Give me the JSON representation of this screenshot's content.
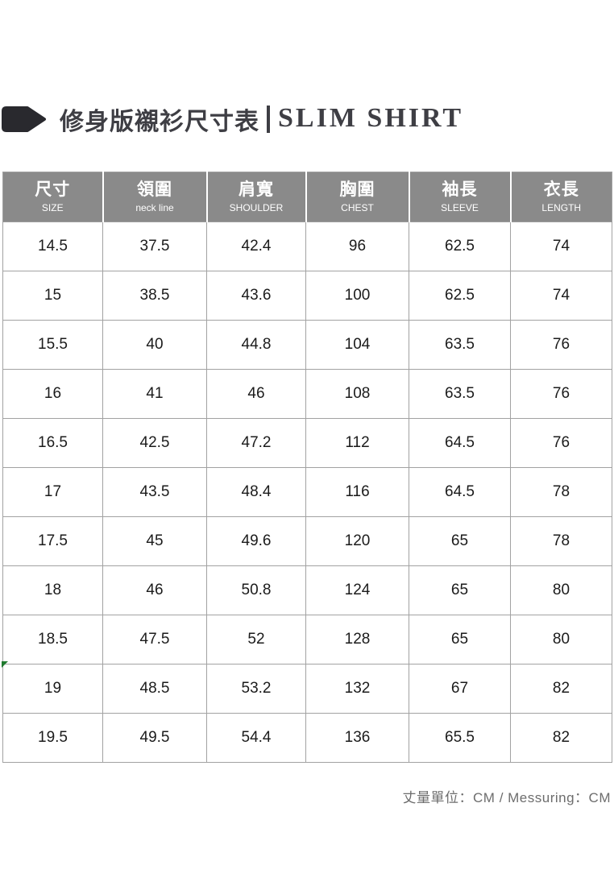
{
  "title": {
    "zh": "修身版襯衫尺寸表",
    "en": "SLIM SHIRT"
  },
  "size_table": {
    "columns": [
      {
        "zh": "尺寸",
        "en": "SIZE"
      },
      {
        "zh": "領圍",
        "en": "neck line"
      },
      {
        "zh": "肩寬",
        "en": "SHOULDER"
      },
      {
        "zh": "胸圍",
        "en": "CHEST"
      },
      {
        "zh": "袖長",
        "en": "SLEEVE"
      },
      {
        "zh": "衣長",
        "en": "LENGTH"
      }
    ],
    "rows": [
      [
        "14.5",
        "37.5",
        "42.4",
        "96",
        "62.5",
        "74"
      ],
      [
        "15",
        "38.5",
        "43.6",
        "100",
        "62.5",
        "74"
      ],
      [
        "15.5",
        "40",
        "44.8",
        "104",
        "63.5",
        "76"
      ],
      [
        "16",
        "41",
        "46",
        "108",
        "63.5",
        "76"
      ],
      [
        "16.5",
        "42.5",
        "47.2",
        "112",
        "64.5",
        "76"
      ],
      [
        "17",
        "43.5",
        "48.4",
        "116",
        "64.5",
        "78"
      ],
      [
        "17.5",
        "45",
        "49.6",
        "120",
        "65",
        "78"
      ],
      [
        "18",
        "46",
        "50.8",
        "124",
        "65",
        "80"
      ],
      [
        "18.5",
        "47.5",
        "52",
        "128",
        "65",
        "80"
      ],
      [
        "19",
        "48.5",
        "53.2",
        "132",
        "67",
        "82"
      ],
      [
        "19.5",
        "49.5",
        "54.4",
        "136",
        "65.5",
        "82"
      ]
    ],
    "unit": "CM"
  },
  "footer": {
    "note": "丈量單位：CM / Messuring：CM"
  },
  "colors": {
    "header_bg": "#8a8a8a",
    "table_border": "#a2a2a2",
    "title_text": "#3e3e44",
    "icon_fill": "#29292e",
    "footer_text": "#6d6d6d",
    "marker_green": "#1f7a2e"
  }
}
